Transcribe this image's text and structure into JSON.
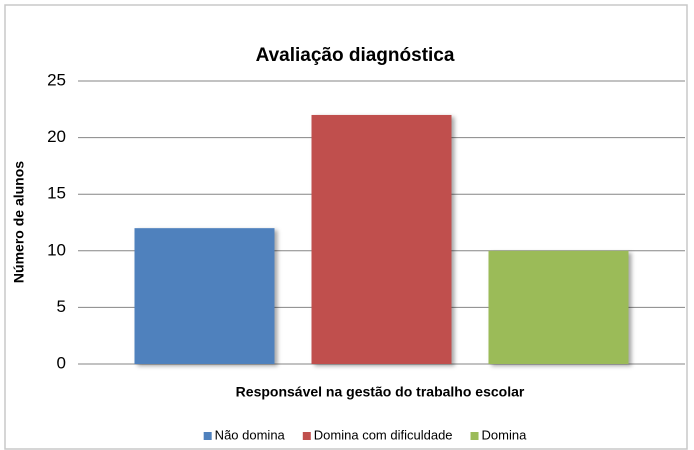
{
  "chart_data": {
    "type": "bar",
    "title": "Avaliação diagnóstica",
    "y_label": "Número de alunos",
    "x_label": "Responsável na gestão do trabalho escolar",
    "categories": [
      null
    ],
    "series": [
      {
        "name": "Não domina",
        "color": "#4f81bd",
        "values": [
          12
        ]
      },
      {
        "name": "Domina com dificuldade",
        "color": "#c0504d",
        "values": [
          22
        ]
      },
      {
        "name": "Domina",
        "color": "#9bbb59",
        "values": [
          10
        ]
      }
    ],
    "ylim": [
      0,
      25
    ],
    "yticks": [
      0,
      5,
      10,
      15,
      20,
      25
    ],
    "grid": true,
    "legend": "bottom"
  }
}
